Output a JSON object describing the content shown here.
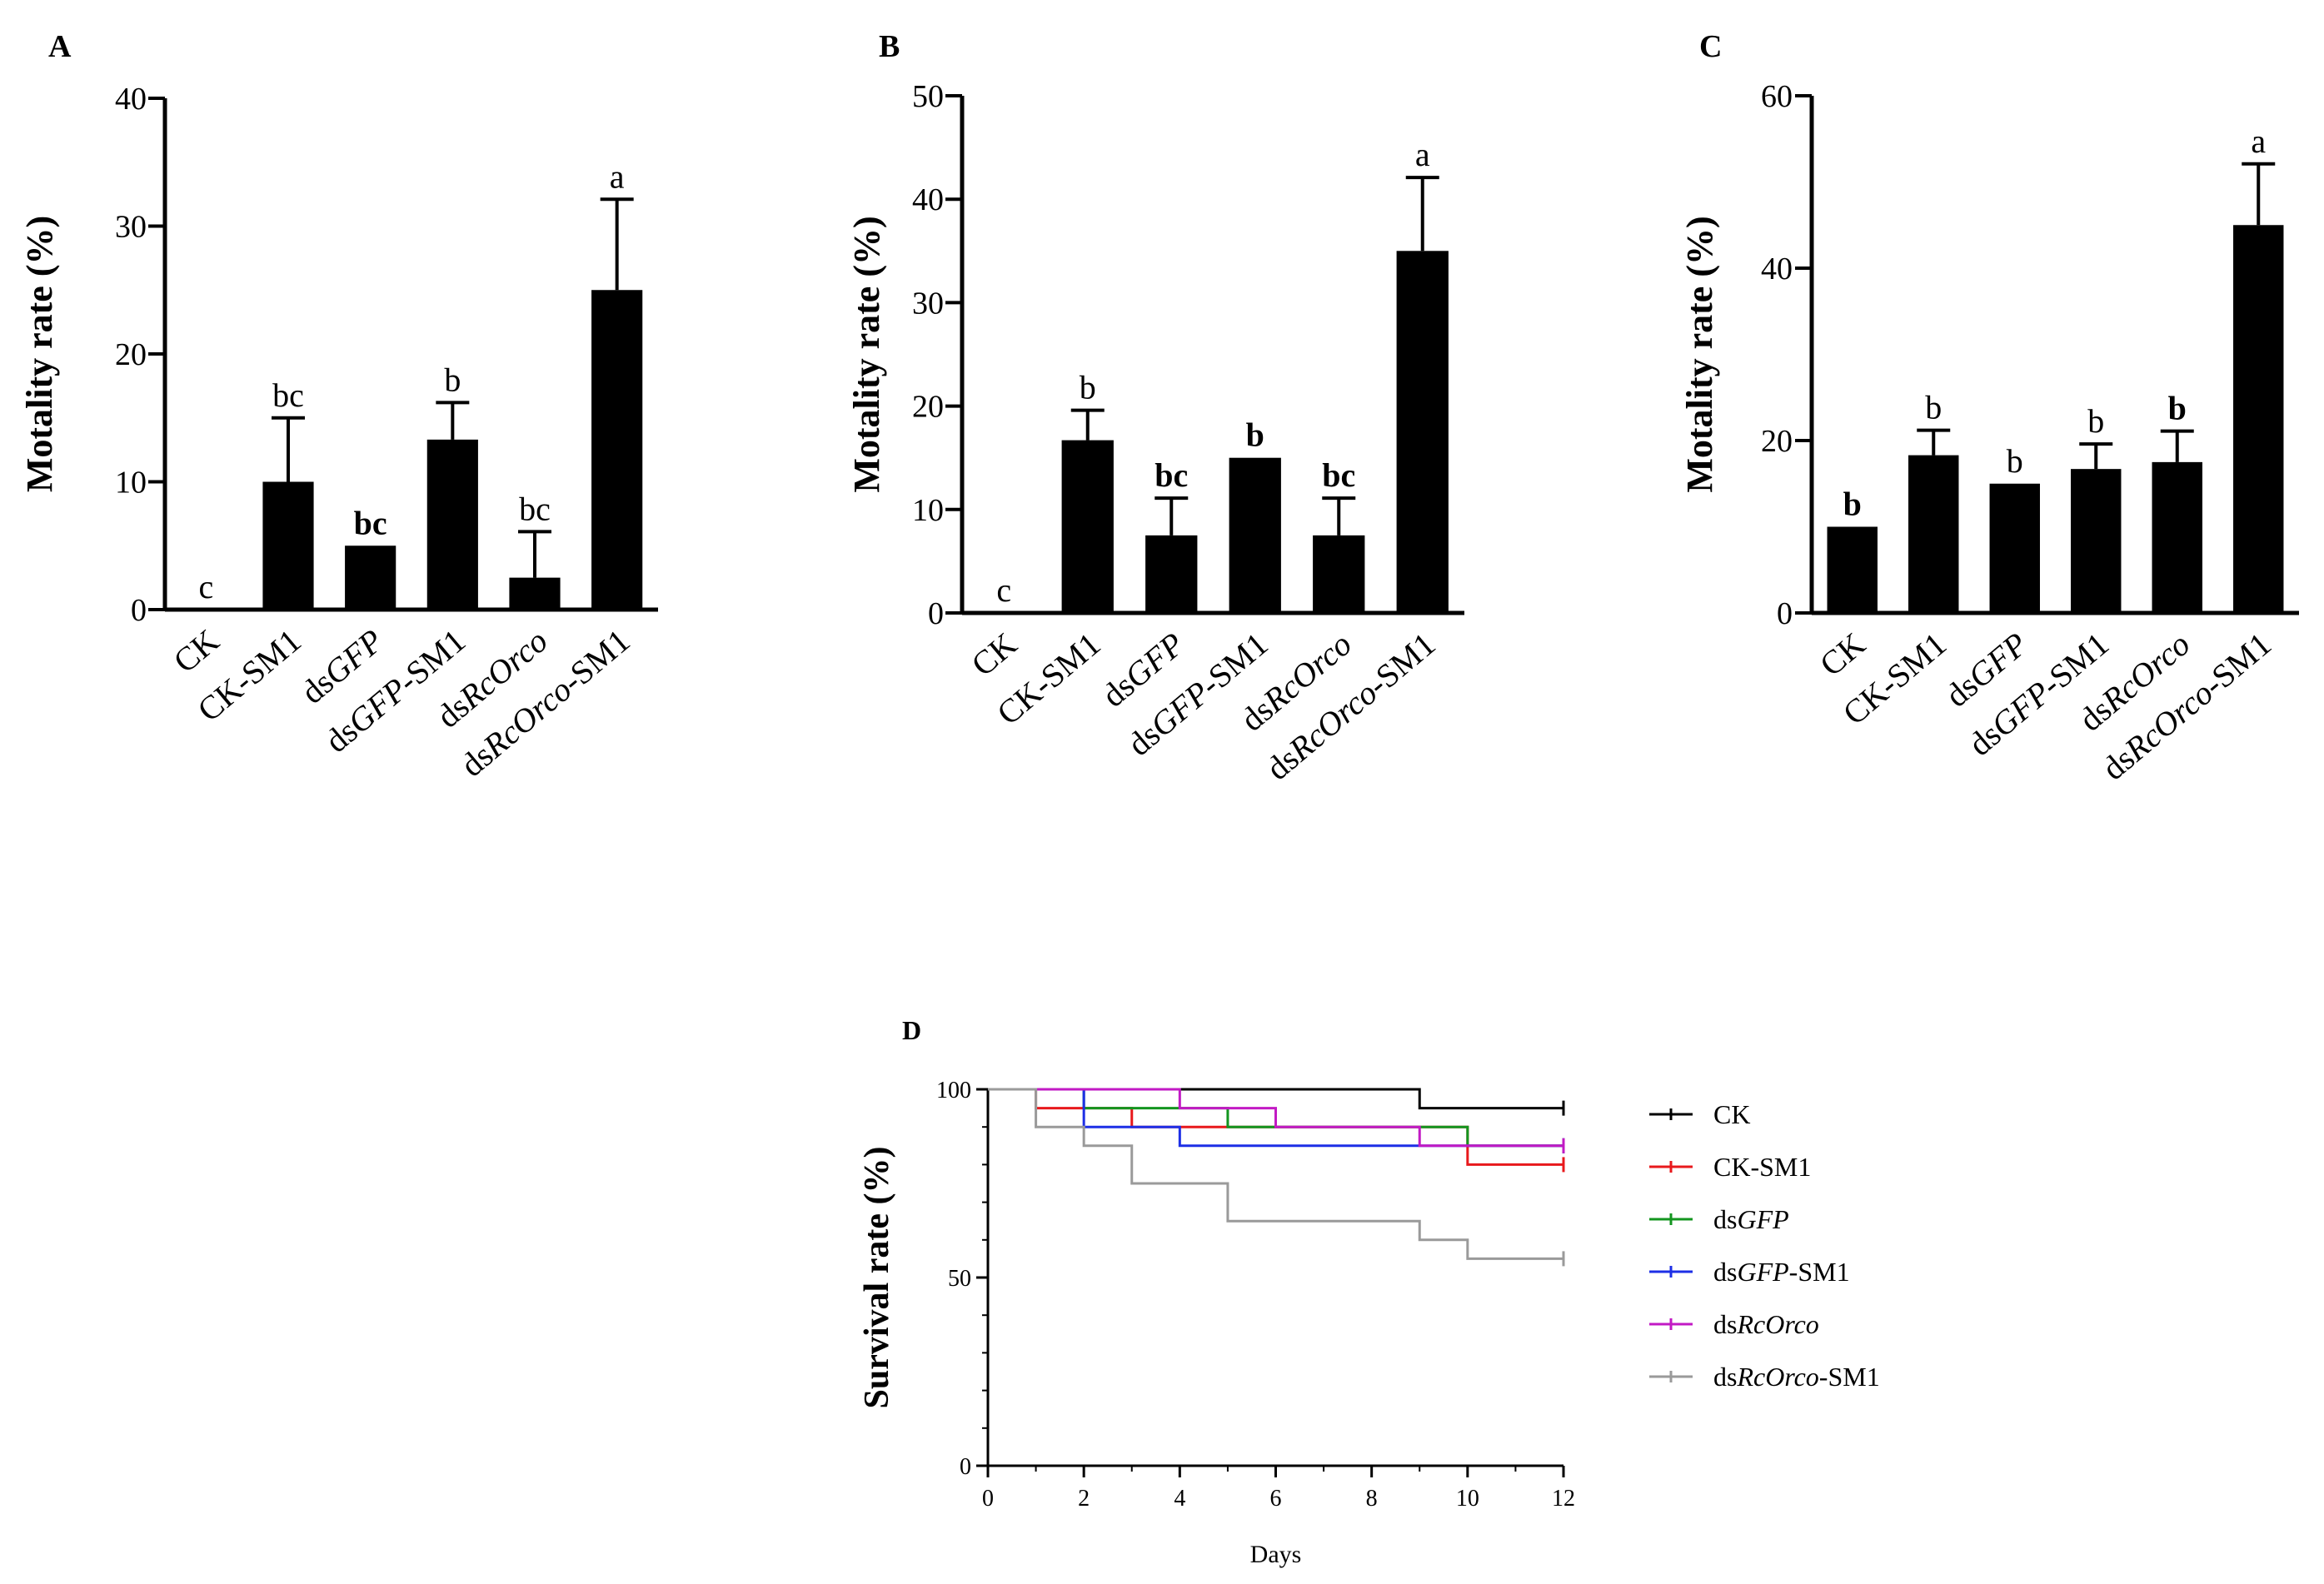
{
  "chart_data": [
    {
      "panel": "A",
      "type": "bar",
      "categories": [
        {
          "name": "CK",
          "parts": [
            {
              "t": "CK",
              "i": false
            }
          ]
        },
        {
          "name": "CK-SM1",
          "parts": [
            {
              "t": "CK-SM1",
              "i": false
            }
          ]
        },
        {
          "name": "dsGFP",
          "parts": [
            {
              "t": "ds",
              "i": false
            },
            {
              "t": "GFP",
              "i": true
            }
          ]
        },
        {
          "name": "dsGFP-SM1",
          "parts": [
            {
              "t": "ds",
              "i": false
            },
            {
              "t": "GFP",
              "i": true
            },
            {
              "t": "-SM1",
              "i": false
            }
          ]
        },
        {
          "name": "dsRcOrco",
          "parts": [
            {
              "t": "ds",
              "i": false
            },
            {
              "t": "RcOrco",
              "i": true
            }
          ]
        },
        {
          "name": "dsRcOrco-SM1",
          "parts": [
            {
              "t": "ds",
              "i": false
            },
            {
              "t": "RcOrco",
              "i": true
            },
            {
              "t": "-SM1",
              "i": false
            }
          ]
        }
      ],
      "values": [
        0,
        10,
        5,
        13.3,
        2.5,
        25
      ],
      "errors": [
        0,
        5,
        0,
        2.9,
        3.6,
        7.1
      ],
      "letters": [
        "c",
        "bc",
        "bc",
        "b",
        "bc",
        "a"
      ],
      "letters_bold": [
        false,
        false,
        true,
        false,
        false,
        false
      ],
      "ylabel": "Motality rate (%)",
      "ylim": [
        0,
        40
      ],
      "yticks": [
        0,
        10,
        20,
        30,
        40
      ]
    },
    {
      "panel": "B",
      "type": "bar",
      "categories": [
        {
          "name": "CK",
          "parts": [
            {
              "t": "CK",
              "i": false
            }
          ]
        },
        {
          "name": "CK-SM1",
          "parts": [
            {
              "t": "CK-SM1",
              "i": false
            }
          ]
        },
        {
          "name": "dsGFP",
          "parts": [
            {
              "t": "ds",
              "i": false
            },
            {
              "t": "GFP",
              "i": true
            }
          ]
        },
        {
          "name": "dsGFP-SM1",
          "parts": [
            {
              "t": "ds",
              "i": false
            },
            {
              "t": "GFP",
              "i": true
            },
            {
              "t": "-SM1",
              "i": false
            }
          ]
        },
        {
          "name": "dsRcOrco",
          "parts": [
            {
              "t": "ds",
              "i": false
            },
            {
              "t": "RcOrco",
              "i": true
            }
          ]
        },
        {
          "name": "dsRcOrco-SM1",
          "parts": [
            {
              "t": "ds",
              "i": false
            },
            {
              "t": "RcOrco",
              "i": true
            },
            {
              "t": "-SM1",
              "i": false
            }
          ]
        }
      ],
      "values": [
        0,
        16.7,
        7.5,
        15,
        7.5,
        35
      ],
      "errors": [
        0,
        2.9,
        3.6,
        0,
        3.6,
        7.1
      ],
      "letters": [
        "c",
        "b",
        "bc",
        "b",
        "bc",
        "a"
      ],
      "letters_bold": [
        false,
        false,
        true,
        true,
        true,
        false
      ],
      "ylabel": "Motality rate (%)",
      "ylim": [
        0,
        50
      ],
      "yticks": [
        0,
        10,
        20,
        30,
        40,
        50
      ]
    },
    {
      "panel": "C",
      "type": "bar",
      "categories": [
        {
          "name": "CK",
          "parts": [
            {
              "t": "CK",
              "i": false
            }
          ]
        },
        {
          "name": "CK-SM1",
          "parts": [
            {
              "t": "CK-SM1",
              "i": false
            }
          ]
        },
        {
          "name": "dsGFP",
          "parts": [
            {
              "t": "ds",
              "i": false
            },
            {
              "t": "GFP",
              "i": true
            }
          ]
        },
        {
          "name": "dsGFP-SM1",
          "parts": [
            {
              "t": "ds",
              "i": false
            },
            {
              "t": "GFP",
              "i": true
            },
            {
              "t": "-SM1",
              "i": false
            }
          ]
        },
        {
          "name": "dsRcOrco",
          "parts": [
            {
              "t": "ds",
              "i": false
            },
            {
              "t": "RcOrco",
              "i": true
            }
          ]
        },
        {
          "name": "dsRcOrco-SM1",
          "parts": [
            {
              "t": "ds",
              "i": false
            },
            {
              "t": "RcOrco",
              "i": true
            },
            {
              "t": "-SM1",
              "i": false
            }
          ]
        }
      ],
      "values": [
        10,
        18.3,
        15,
        16.7,
        17.5,
        45
      ],
      "errors": [
        0,
        2.9,
        0,
        2.9,
        3.6,
        7.1
      ],
      "letters": [
        "b",
        "b",
        "b",
        "b",
        "b",
        "a"
      ],
      "letters_bold": [
        true,
        false,
        false,
        false,
        true,
        false
      ],
      "ylabel": "Motality rate (%)",
      "ylim": [
        0,
        60
      ],
      "yticks": [
        0,
        20,
        40,
        60
      ]
    },
    {
      "panel": "D",
      "type": "line",
      "xlabel": "Days",
      "ylabel": "Survival rate (%)",
      "xlim": [
        0,
        12
      ],
      "ylim": [
        0,
        100
      ],
      "xticks": [
        0,
        2,
        4,
        6,
        8,
        10,
        12
      ],
      "yticks": [
        0,
        50,
        100
      ],
      "legend_position": "right",
      "series": [
        {
          "name": "CK",
          "parts": [
            {
              "t": "CK",
              "i": false
            }
          ],
          "color": "#000000",
          "steps": [
            [
              0,
              100
            ],
            [
              9,
              95
            ],
            [
              12,
              95
            ]
          ],
          "censor": [
            [
              12,
              95
            ]
          ]
        },
        {
          "name": "CK-SM1",
          "parts": [
            {
              "t": "CK-SM1",
              "i": false
            }
          ],
          "color": "#e8191c",
          "steps": [
            [
              0,
              100
            ],
            [
              1,
              95
            ],
            [
              3,
              90
            ],
            [
              10,
              80
            ],
            [
              12,
              80
            ]
          ],
          "censor": [
            [
              12,
              80
            ]
          ]
        },
        {
          "name": "dsGFP",
          "parts": [
            {
              "t": "ds",
              "i": false
            },
            {
              "t": "GFP",
              "i": true
            }
          ],
          "color": "#13951f",
          "steps": [
            [
              0,
              100
            ],
            [
              2,
              95
            ],
            [
              5,
              90
            ],
            [
              10,
              85
            ],
            [
              12,
              85
            ]
          ],
          "censor": [
            [
              12,
              85
            ]
          ]
        },
        {
          "name": "dsGFP-SM1",
          "parts": [
            {
              "t": "ds",
              "i": false
            },
            {
              "t": "GFP",
              "i": true
            },
            {
              "t": "-SM1",
              "i": false
            }
          ],
          "color": "#1d2fe6",
          "steps": [
            [
              0,
              100
            ],
            [
              2,
              90
            ],
            [
              4,
              85
            ],
            [
              12,
              85
            ]
          ],
          "censor": [
            [
              12,
              85
            ]
          ]
        },
        {
          "name": "dsRcOrco",
          "parts": [
            {
              "t": "ds",
              "i": false
            },
            {
              "t": "RcOrco",
              "i": true
            }
          ],
          "color": "#c21ac4",
          "steps": [
            [
              0,
              100
            ],
            [
              4,
              95
            ],
            [
              6,
              90
            ],
            [
              9,
              85
            ],
            [
              12,
              85
            ]
          ],
          "censor": [
            [
              12,
              85
            ]
          ]
        },
        {
          "name": "dsRcOrco-SM1",
          "parts": [
            {
              "t": "ds",
              "i": false
            },
            {
              "t": "RcOrco",
              "i": true
            },
            {
              "t": "-SM1",
              "i": false
            }
          ],
          "color": "#9a9a9a",
          "steps": [
            [
              0,
              100
            ],
            [
              1,
              90
            ],
            [
              2,
              85
            ],
            [
              3,
              75
            ],
            [
              5,
              65
            ],
            [
              9,
              60
            ],
            [
              10,
              55
            ],
            [
              12,
              55
            ]
          ],
          "censor": [
            [
              12,
              55
            ]
          ]
        }
      ]
    }
  ]
}
